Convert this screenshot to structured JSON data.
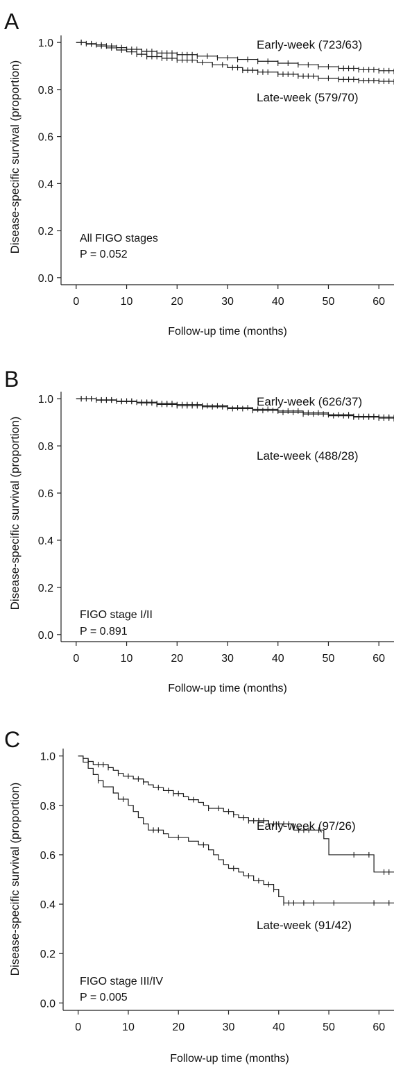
{
  "chart_data": [
    {
      "panel": "A",
      "type": "line",
      "step": true,
      "ylabel": "Disease-specific survival (proportion)",
      "xlabel": "Follow-up time (months)",
      "xlim": [
        -3,
        63
      ],
      "ylim": [
        -0.03,
        1.03
      ],
      "xticks": [
        "0",
        "10",
        "20",
        "30",
        "40",
        "50",
        "60"
      ],
      "yticks": [
        "0.0",
        "0.2",
        "0.4",
        "0.6",
        "0.8",
        "1.0"
      ],
      "annotation_lines": [
        "All FIGO stages",
        "P = 0.052"
      ],
      "series": [
        {
          "name": "Early-week (723/63)",
          "points": [
            [
              0,
              1.0
            ],
            [
              2,
              0.995
            ],
            [
              4,
              0.99
            ],
            [
              6,
              0.985
            ],
            [
              8,
              0.978
            ],
            [
              10,
              0.971
            ],
            [
              13,
              0.962
            ],
            [
              16,
              0.955
            ],
            [
              20,
              0.948
            ],
            [
              24,
              0.942
            ],
            [
              28,
              0.935
            ],
            [
              32,
              0.928
            ],
            [
              36,
              0.92
            ],
            [
              40,
              0.912
            ],
            [
              44,
              0.905
            ],
            [
              48,
              0.897
            ],
            [
              52,
              0.89
            ],
            [
              56,
              0.884
            ],
            [
              60,
              0.88
            ],
            [
              63,
              0.877
            ]
          ],
          "censor_x": [
            1,
            2,
            3,
            4,
            5,
            6,
            7,
            8,
            9,
            10,
            11,
            12,
            13,
            14,
            15,
            16,
            17,
            18,
            19,
            20,
            21,
            22,
            23,
            24,
            26,
            28,
            30,
            32,
            34,
            36,
            38,
            40,
            42,
            44,
            46,
            48,
            50,
            52,
            53,
            54,
            55,
            56,
            57,
            58,
            59,
            60,
            61,
            62,
            63
          ]
        },
        {
          "name": "Late-week (579/70)",
          "points": [
            [
              0,
              1.0
            ],
            [
              2,
              0.993
            ],
            [
              4,
              0.985
            ],
            [
              6,
              0.977
            ],
            [
              8,
              0.968
            ],
            [
              10,
              0.96
            ],
            [
              12,
              0.95
            ],
            [
              14,
              0.94
            ],
            [
              17,
              0.933
            ],
            [
              20,
              0.925
            ],
            [
              24,
              0.915
            ],
            [
              27,
              0.905
            ],
            [
              30,
              0.893
            ],
            [
              33,
              0.882
            ],
            [
              36,
              0.874
            ],
            [
              40,
              0.865
            ],
            [
              44,
              0.857
            ],
            [
              48,
              0.848
            ],
            [
              52,
              0.843
            ],
            [
              56,
              0.838
            ],
            [
              60,
              0.835
            ],
            [
              63,
              0.833
            ]
          ],
          "censor_x": [
            1,
            3,
            5,
            7,
            9,
            11,
            12,
            13,
            14,
            15,
            16,
            17,
            18,
            19,
            20,
            21,
            22,
            23,
            25,
            27,
            29,
            31,
            32,
            33,
            34,
            35,
            36,
            37,
            38,
            40,
            41,
            42,
            43,
            44,
            45,
            46,
            47,
            48,
            50,
            52,
            53,
            54,
            55,
            56,
            57,
            58,
            59,
            60,
            61,
            62,
            63
          ]
        }
      ]
    },
    {
      "panel": "B",
      "type": "line",
      "step": true,
      "ylabel": "Disease-specific survival (proportion)",
      "xlabel": "Follow-up time (months)",
      "xlim": [
        -3,
        63
      ],
      "ylim": [
        -0.03,
        1.03
      ],
      "xticks": [
        "0",
        "10",
        "20",
        "30",
        "40",
        "50",
        "60"
      ],
      "yticks": [
        "0.0",
        "0.2",
        "0.4",
        "0.6",
        "0.8",
        "1.0"
      ],
      "annotation_lines": [
        "FIGO stage I/II",
        "P = 0.891"
      ],
      "series": [
        {
          "name": "Early-week (626/37)",
          "points": [
            [
              0,
              1.0
            ],
            [
              4,
              0.995
            ],
            [
              8,
              0.99
            ],
            [
              12,
              0.985
            ],
            [
              16,
              0.98
            ],
            [
              20,
              0.975
            ],
            [
              25,
              0.97
            ],
            [
              30,
              0.962
            ],
            [
              35,
              0.955
            ],
            [
              40,
              0.948
            ],
            [
              45,
              0.94
            ],
            [
              50,
              0.932
            ],
            [
              55,
              0.925
            ],
            [
              60,
              0.922
            ],
            [
              63,
              0.92
            ]
          ],
          "censor_x": [
            1,
            2,
            3,
            4,
            5,
            6,
            7,
            8,
            9,
            10,
            11,
            12,
            13,
            14,
            15,
            16,
            17,
            18,
            19,
            20,
            21,
            22,
            23,
            24,
            25,
            26,
            28,
            30,
            32,
            34,
            36,
            38,
            40,
            42,
            44,
            46,
            48,
            50,
            52,
            54,
            55,
            56,
            57,
            58,
            59,
            60,
            61,
            62,
            63
          ]
        },
        {
          "name": "Late-week (488/28)",
          "points": [
            [
              0,
              1.0
            ],
            [
              4,
              0.994
            ],
            [
              8,
              0.988
            ],
            [
              12,
              0.982
            ],
            [
              16,
              0.976
            ],
            [
              20,
              0.97
            ],
            [
              25,
              0.966
            ],
            [
              30,
              0.958
            ],
            [
              35,
              0.95
            ],
            [
              40,
              0.942
            ],
            [
              45,
              0.935
            ],
            [
              50,
              0.928
            ],
            [
              55,
              0.922
            ],
            [
              60,
              0.918
            ],
            [
              63,
              0.915
            ]
          ],
          "censor_x": [
            1,
            3,
            5,
            6,
            7,
            9,
            11,
            13,
            14,
            15,
            16,
            17,
            18,
            19,
            20,
            21,
            22,
            23,
            24,
            25,
            27,
            29,
            31,
            33,
            35,
            37,
            39,
            41,
            43,
            45,
            47,
            49,
            51,
            53,
            54,
            55,
            56,
            57,
            58,
            59,
            60,
            61,
            62,
            63
          ]
        }
      ]
    },
    {
      "panel": "C",
      "type": "line",
      "step": true,
      "ylabel": "Disease-specific survival (proportion)",
      "xlabel": "Follow-up time (months)",
      "xlim": [
        -3,
        63
      ],
      "ylim": [
        -0.03,
        1.03
      ],
      "xticks": [
        "0",
        "10",
        "20",
        "30",
        "40",
        "50",
        "60"
      ],
      "yticks": [
        "0.0",
        "0.2",
        "0.4",
        "0.6",
        "0.8",
        "1.0"
      ],
      "annotation_lines": [
        "FIGO stage III/IV",
        "P = 0.005"
      ],
      "series": [
        {
          "name": "Early-week (97/26)",
          "points": [
            [
              0,
              1.0
            ],
            [
              1,
              0.99
            ],
            [
              2,
              0.978
            ],
            [
              3,
              0.965
            ],
            [
              6,
              0.953
            ],
            [
              7,
              0.942
            ],
            [
              8,
              0.93
            ],
            [
              9,
              0.918
            ],
            [
              11,
              0.907
            ],
            [
              13,
              0.895
            ],
            [
              14,
              0.883
            ],
            [
              15,
              0.872
            ],
            [
              17,
              0.86
            ],
            [
              19,
              0.848
            ],
            [
              21,
              0.835
            ],
            [
              22,
              0.823
            ],
            [
              24,
              0.812
            ],
            [
              25,
              0.8
            ],
            [
              26,
              0.788
            ],
            [
              29,
              0.775
            ],
            [
              31,
              0.762
            ],
            [
              32,
              0.75
            ],
            [
              34,
              0.738
            ],
            [
              38,
              0.725
            ],
            [
              43,
              0.7
            ],
            [
              49,
              0.665
            ],
            [
              50,
              0.6
            ],
            [
              59,
              0.53
            ],
            [
              63,
              0.53
            ]
          ],
          "censor_x": [
            2,
            4,
            5,
            6,
            8,
            10,
            12,
            13,
            16,
            18,
            19,
            20,
            23,
            26,
            28,
            30,
            31,
            33,
            34,
            35,
            36,
            37,
            38,
            39,
            40,
            41,
            42,
            44,
            45,
            46,
            48,
            55,
            58,
            61,
            62
          ]
        },
        {
          "name": "Late-week (91/42)",
          "points": [
            [
              0,
              1.0
            ],
            [
              1,
              0.975
            ],
            [
              2,
              0.95
            ],
            [
              3,
              0.925
            ],
            [
              4,
              0.9
            ],
            [
              5,
              0.875
            ],
            [
              7,
              0.85
            ],
            [
              8,
              0.825
            ],
            [
              10,
              0.8
            ],
            [
              11,
              0.775
            ],
            [
              12,
              0.75
            ],
            [
              13,
              0.725
            ],
            [
              14,
              0.7
            ],
            [
              17,
              0.685
            ],
            [
              18,
              0.67
            ],
            [
              22,
              0.655
            ],
            [
              24,
              0.64
            ],
            [
              26,
              0.62
            ],
            [
              27,
              0.6
            ],
            [
              28,
              0.58
            ],
            [
              29,
              0.56
            ],
            [
              30,
              0.545
            ],
            [
              32,
              0.53
            ],
            [
              33,
              0.515
            ],
            [
              35,
              0.495
            ],
            [
              37,
              0.48
            ],
            [
              39,
              0.46
            ],
            [
              40,
              0.43
            ],
            [
              41,
              0.405
            ],
            [
              63,
              0.405
            ]
          ],
          "censor_x": [
            4,
            9,
            15,
            16,
            20,
            25,
            31,
            34,
            36,
            38,
            39,
            41,
            42,
            43,
            45,
            47,
            51,
            59,
            62
          ]
        }
      ]
    }
  ],
  "panel_letters": [
    "A",
    "B",
    "C"
  ]
}
